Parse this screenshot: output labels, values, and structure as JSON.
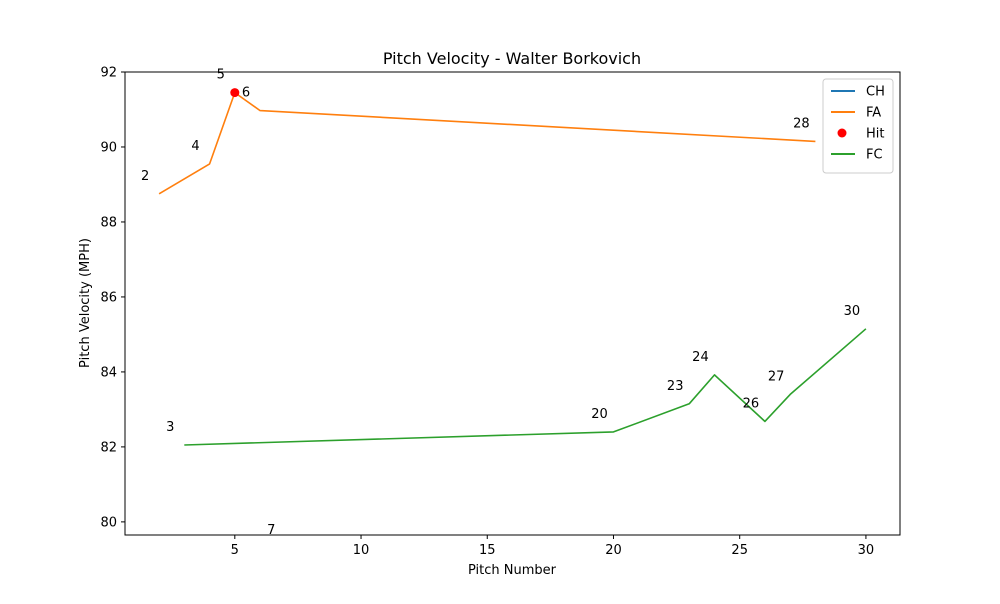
{
  "chart_data": {
    "type": "line",
    "title": "Pitch Velocity - Walter Borkovich",
    "xlabel": "Pitch Number",
    "ylabel": "Pitch Velocity (MPH)",
    "xlim": [
      0.65,
      31.35
    ],
    "ylim": [
      79.65,
      92.0
    ],
    "xticks": [
      5,
      10,
      15,
      20,
      25,
      30
    ],
    "yticks": [
      80,
      82,
      84,
      86,
      88,
      90,
      92
    ],
    "grid": false,
    "legend_position": "top-right",
    "series": [
      {
        "name": "CH",
        "type": "line",
        "color": "#1f77b4",
        "points": [
          [
            7,
            79.3
          ]
        ]
      },
      {
        "name": "FA",
        "type": "line",
        "color": "#ff7f0e",
        "points": [
          [
            2,
            88.75
          ],
          [
            4,
            89.55
          ],
          [
            5,
            91.45
          ],
          [
            6,
            90.97
          ],
          [
            28,
            90.15
          ]
        ]
      },
      {
        "name": "Hit",
        "type": "scatter",
        "color": "#ff0000",
        "points": [
          [
            5,
            91.45
          ]
        ]
      },
      {
        "name": "FC",
        "type": "line",
        "color": "#2ca02c",
        "points": [
          [
            3,
            82.05
          ],
          [
            20,
            82.4
          ],
          [
            23,
            83.15
          ],
          [
            24,
            83.92
          ],
          [
            26,
            82.68
          ],
          [
            27,
            83.4
          ],
          [
            30,
            85.15
          ]
        ]
      }
    ],
    "annotations": [
      {
        "text": "2",
        "x": 2,
        "y": 88.75
      },
      {
        "text": "3",
        "x": 3,
        "y": 82.05
      },
      {
        "text": "4",
        "x": 4,
        "y": 89.55
      },
      {
        "text": "5",
        "x": 5,
        "y": 91.45
      },
      {
        "text": "6",
        "x": 6,
        "y": 90.97
      },
      {
        "text": "7",
        "x": 7,
        "y": 79.3
      },
      {
        "text": "20",
        "x": 20,
        "y": 82.4
      },
      {
        "text": "23",
        "x": 23,
        "y": 83.15
      },
      {
        "text": "24",
        "x": 24,
        "y": 83.92
      },
      {
        "text": "26",
        "x": 26,
        "y": 82.68
      },
      {
        "text": "27",
        "x": 27,
        "y": 83.4
      },
      {
        "text": "28",
        "x": 28,
        "y": 90.15
      },
      {
        "text": "30",
        "x": 30,
        "y": 85.15
      }
    ]
  }
}
